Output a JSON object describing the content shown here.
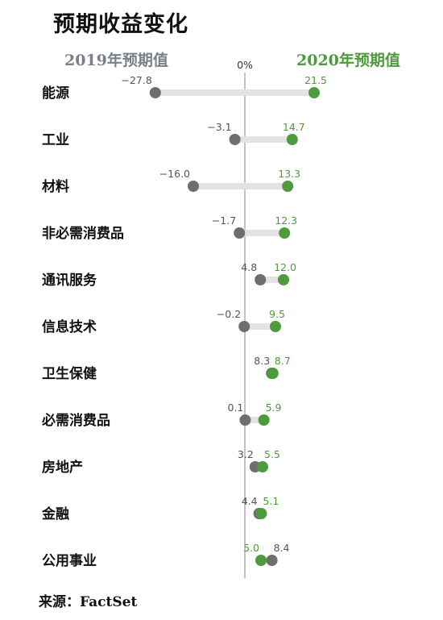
{
  "title": "预期收益变化",
  "source": "来源：FactSet",
  "chart_data": {
    "type": "dumbbell",
    "title": "预期收益变化",
    "zero_label": "0%",
    "series": [
      {
        "name": "2019年预期值",
        "color": "#6e6e6e"
      },
      {
        "name": "2020年预期值",
        "color": "#4e9a3c"
      }
    ],
    "colors": {
      "v2019": "#6e6e6e",
      "v2020": "#4e9a3c",
      "bar": "#e3e3e3",
      "axis": "#888888",
      "label2019": "#555555",
      "label2020": "#4e9a3c"
    },
    "categories": [
      "能源",
      "工业",
      "材料",
      "非必需消费品",
      "通讯服务",
      "信息技术",
      "卫生保健",
      "必需消费品",
      "房地产",
      "金融",
      "公用事业"
    ],
    "v2019": [
      -27.8,
      -3.1,
      -16.0,
      -1.7,
      4.8,
      -0.2,
      8.3,
      0.1,
      3.2,
      4.4,
      8.4
    ],
    "v2020": [
      21.5,
      14.7,
      13.3,
      12.3,
      12.0,
      9.5,
      8.7,
      5.9,
      5.5,
      5.1,
      5.0
    ],
    "labels2019": [
      "−27.8",
      "−3.1",
      "−16.0",
      "−1.7",
      "4.8",
      "−0.2",
      "8.3",
      "0.1",
      "3.2",
      "4.4",
      "8.4"
    ],
    "labels2020": [
      "21.5",
      "14.7",
      "13.3",
      "12.3",
      "12.0",
      "9.5",
      "8.7",
      "5.9",
      "5.5",
      "5.1",
      "5.0"
    ]
  }
}
